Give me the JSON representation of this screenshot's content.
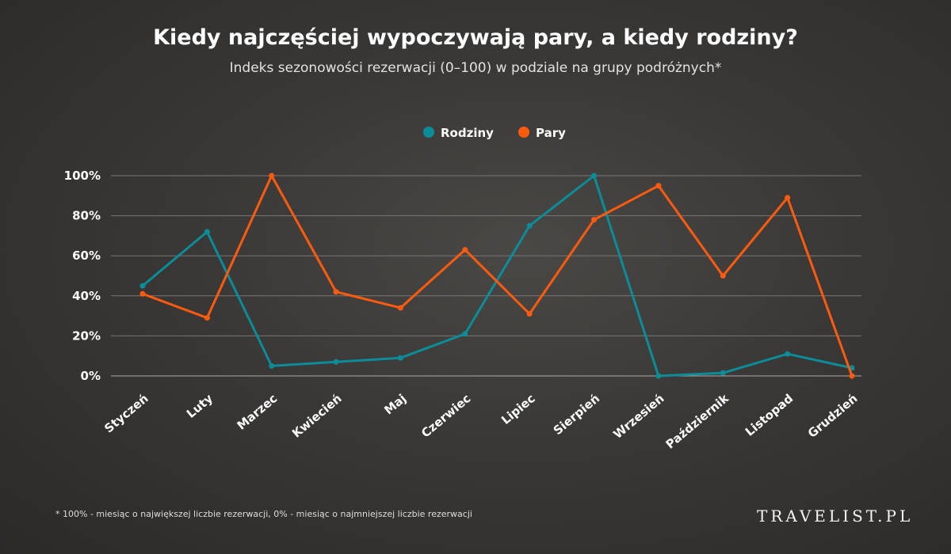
{
  "title": "Kiedy najczęściej wypoczywają pary, a kiedy rodziny?",
  "subtitle": "Indeks sezonowości rezerwacji (0–100) w podziale na grupy podróżnych*",
  "footnote": "* 100% - miesiąc o największej liczbie rezerwacji, 0% - miesiąc o najmniejszej liczbie rezerwacji",
  "logo": "TRAVELIST.PL",
  "chart_data": {
    "type": "line",
    "title": "Kiedy najczęściej wypoczywają pary, a kiedy rodziny?",
    "categories": [
      "Styczeń",
      "Luty",
      "Marzec",
      "Kwiecień",
      "Maj",
      "Czerwiec",
      "Lipiec",
      "Sierpień",
      "Wrzesień",
      "Październik",
      "Listopad",
      "Grudzień"
    ],
    "series": [
      {
        "name": "Rodziny",
        "color": "#0b8d99",
        "values": [
          45,
          72,
          5,
          7,
          9,
          21,
          75,
          100,
          0,
          1.5,
          11,
          4
        ]
      },
      {
        "name": "Pary",
        "color": "#ff5b0f",
        "values": [
          41,
          29,
          100,
          42,
          34,
          63,
          31,
          78,
          95,
          50,
          89,
          0
        ]
      }
    ],
    "yticks": [
      "0%",
      "20%",
      "40%",
      "60%",
      "80%",
      "100%"
    ],
    "ylim": [
      0,
      100
    ],
    "grid": true,
    "legend": "top-center"
  }
}
